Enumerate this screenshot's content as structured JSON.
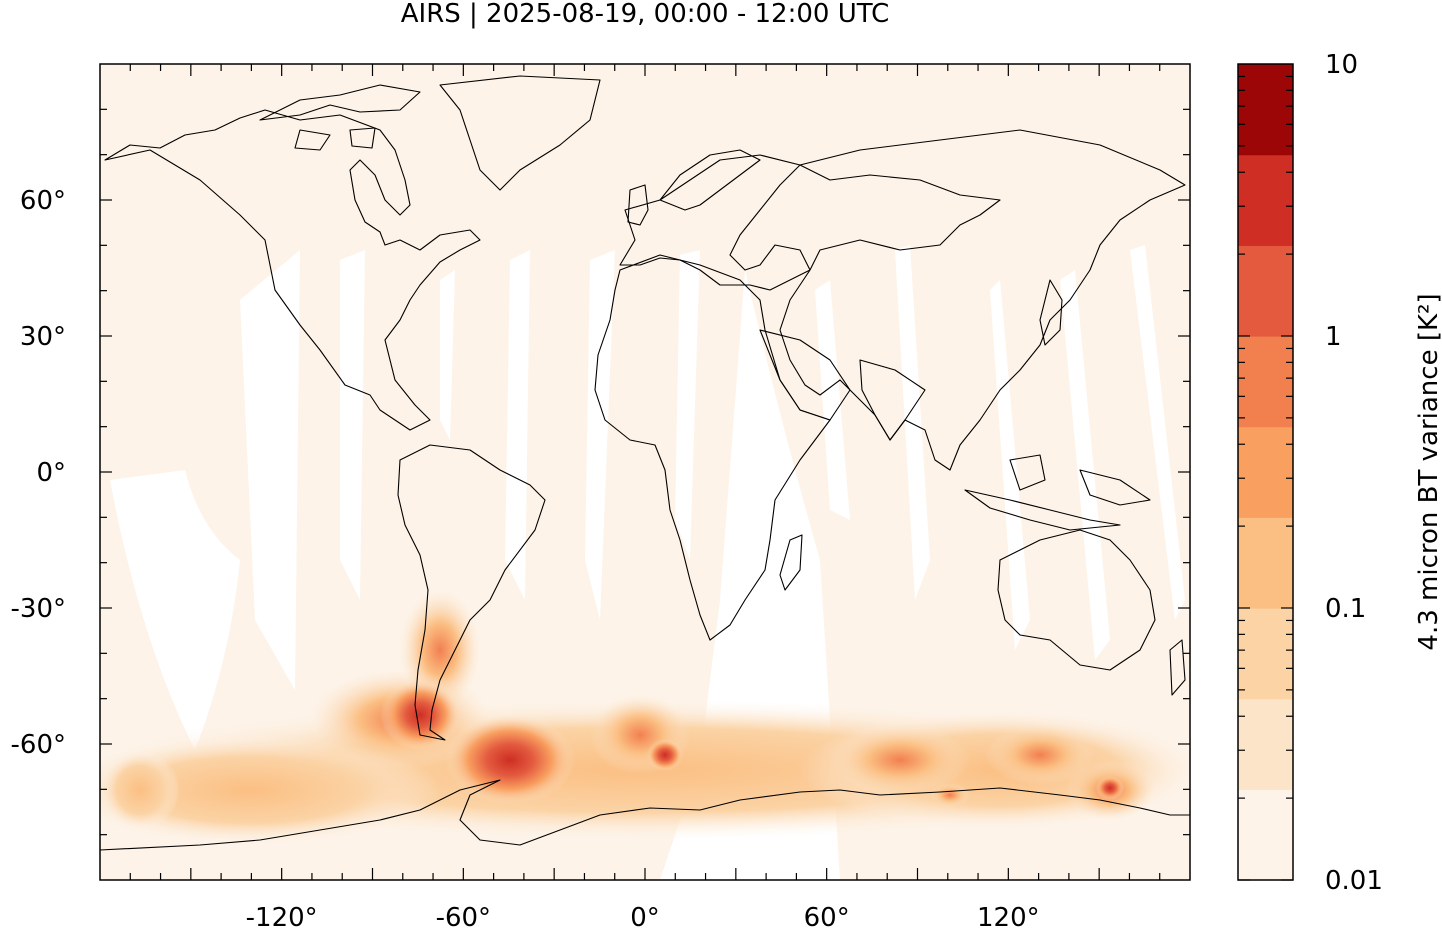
{
  "title": "AIRS | 2025-08-19, 00:00 - 12:00 UTC",
  "map": {
    "projection": "plate-carree",
    "lon_range": [
      -180,
      180
    ],
    "lat_range": [
      -90,
      90
    ],
    "background_color": "#fdf3e8",
    "coastline_color": "#000000",
    "x_ticks": [
      {
        "value": -120,
        "label": "-120°"
      },
      {
        "value": -60,
        "label": "-60°"
      },
      {
        "value": 0,
        "label": "0°"
      },
      {
        "value": 60,
        "label": "60°"
      },
      {
        "value": 120,
        "label": "120°"
      }
    ],
    "y_ticks": [
      {
        "value": 60,
        "label": "60°"
      },
      {
        "value": 30,
        "label": "30°"
      },
      {
        "value": 0,
        "label": "0°"
      },
      {
        "value": -30,
        "label": "-30°"
      },
      {
        "value": -60,
        "label": "-60°"
      }
    ]
  },
  "colorbar": {
    "label": "4.3 micron BT variance [K²]",
    "scale": "log",
    "range": [
      0.01,
      10
    ],
    "tick_labels": [
      "10",
      "1",
      "0.1",
      "0.01"
    ],
    "levels": [
      {
        "color": "#fdf3e8"
      },
      {
        "color": "#fce4c9"
      },
      {
        "color": "#fbd3a5"
      },
      {
        "color": "#fbbf83"
      },
      {
        "color": "#f9a061"
      },
      {
        "color": "#f2804f"
      },
      {
        "color": "#e35a3f"
      },
      {
        "color": "#ce2e23"
      },
      {
        "color": "#9c0606"
      }
    ]
  }
}
